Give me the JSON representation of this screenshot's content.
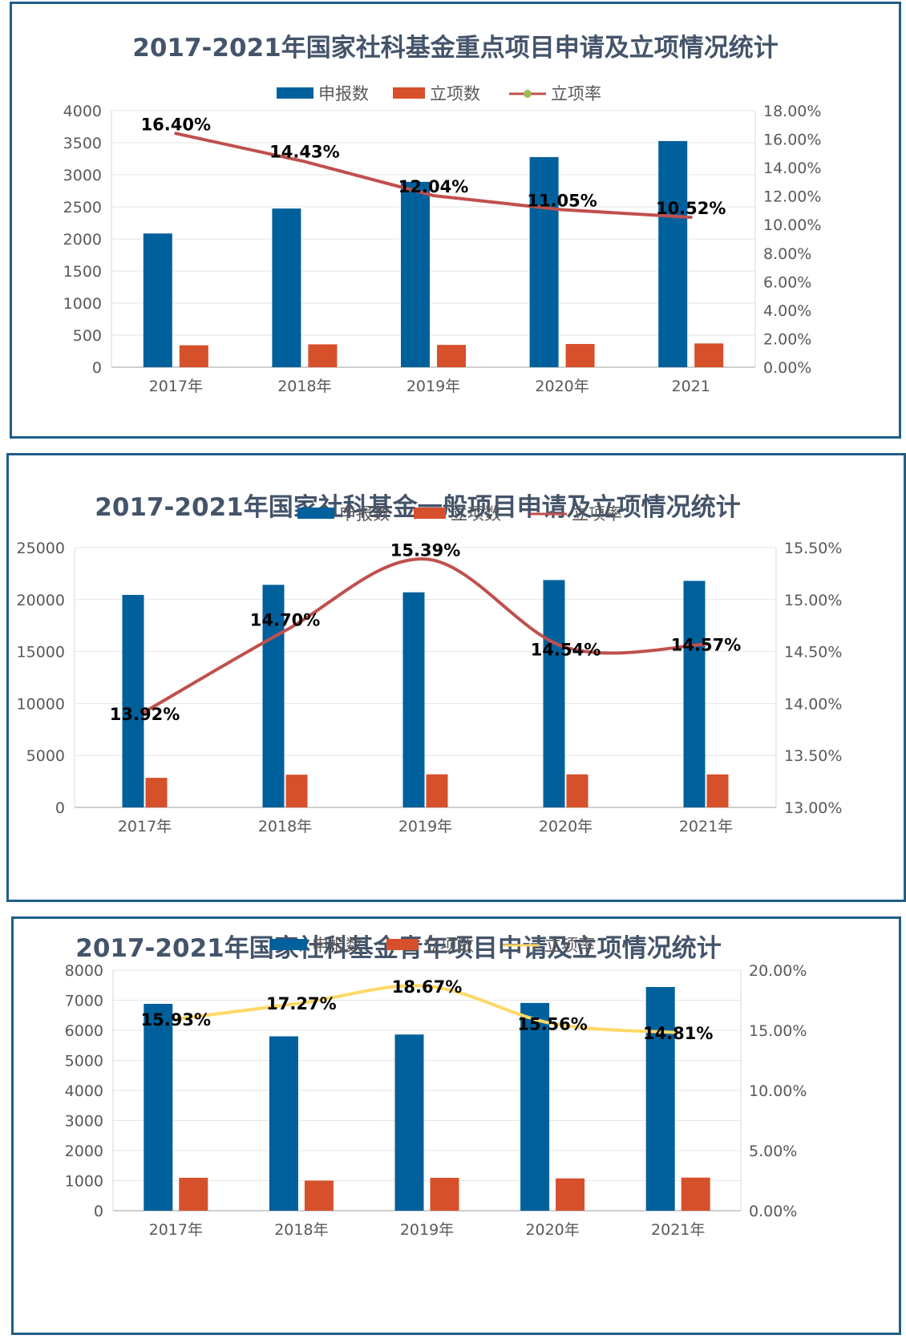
{
  "colors": {
    "declared": "#00609c",
    "approved": "#d6502b",
    "panel_border": "#1f5f86"
  },
  "chart_data": [
    {
      "type": "bar",
      "title": "2017-2021年国家社科基金重点项目申请及立项情况统计",
      "legend": [
        "申报数",
        "立项数",
        "立项率"
      ],
      "legend_marker": "dot",
      "categories": [
        "2017年",
        "2018年",
        "2019年",
        "2020年",
        "2021"
      ],
      "series": [
        {
          "name": "申报数",
          "values": [
            2085,
            2474,
            2890,
            3276,
            3526
          ]
        },
        {
          "name": "立项数",
          "values": [
            342,
            357,
            348,
            362,
            371
          ]
        }
      ],
      "line": {
        "name": "立项率",
        "values": [
          16.4,
          14.43,
          12.04,
          11.05,
          10.52
        ],
        "labels": [
          "16.40%",
          "14.43%",
          "12.04%",
          "11.05%",
          "10.52%"
        ],
        "color": "#c0504d",
        "smooth": false
      },
      "ylim": [
        0,
        4000
      ],
      "yticks": [
        "0",
        "500",
        "1000",
        "1500",
        "2000",
        "2500",
        "3000",
        "3500",
        "4000"
      ],
      "y2lim": [
        0,
        18
      ],
      "y2ticks": [
        "0.00%",
        "2.00%",
        "4.00%",
        "6.00%",
        "8.00%",
        "10.00%",
        "12.00%",
        "14.00%",
        "16.00%",
        "18.00%"
      ]
    },
    {
      "type": "bar",
      "title": "2017-2021年国家社科基金一般项目申请及立项情况统计",
      "legend": [
        "申报数",
        "立项数",
        "立项率"
      ],
      "legend_marker": "line",
      "categories": [
        "2017年",
        "2018年",
        "2019年",
        "2020年",
        "2021年"
      ],
      "series": [
        {
          "name": "申报数",
          "values": [
            20450,
            21420,
            20700,
            21880,
            21800
          ]
        },
        {
          "name": "立项数",
          "values": [
            2847,
            3148,
            3186,
            3181,
            3176
          ]
        }
      ],
      "line": {
        "name": "立项率",
        "values": [
          13.92,
          14.7,
          15.39,
          14.54,
          14.57
        ],
        "labels": [
          "13.92%",
          "14.70%",
          "15.39%",
          "14.54%",
          "14.57%"
        ],
        "color": "#c0504d",
        "smooth": true
      },
      "ylim": [
        0,
        25000
      ],
      "yticks": [
        "0",
        "5000",
        "10000",
        "15000",
        "20000",
        "25000"
      ],
      "y2lim": [
        13,
        15.5
      ],
      "y2ticks": [
        "13.00%",
        "13.50%",
        "14.00%",
        "14.50%",
        "15.00%",
        "15.50%"
      ]
    },
    {
      "type": "bar",
      "title": "2017-2021年国家社科基金青年项目申请及立项情况统计",
      "legend": [
        "申报数",
        "立项数",
        "立项率"
      ],
      "legend_marker": "line",
      "categories": [
        "2017年",
        "2018年",
        "2019年",
        "2020年",
        "2021年"
      ],
      "series": [
        {
          "name": "申报数",
          "values": [
            6880,
            5800,
            5860,
            6910,
            7440
          ]
        },
        {
          "name": "立项数",
          "values": [
            1096,
            1001,
            1094,
            1075,
            1102
          ]
        }
      ],
      "line": {
        "name": "立项率",
        "values": [
          15.93,
          17.27,
          18.67,
          15.56,
          14.81
        ],
        "labels": [
          "15.93%",
          "17.27%",
          "18.67%",
          "15.56%",
          "14.81%"
        ],
        "color": "#ffd966",
        "smooth": true
      },
      "ylim": [
        0,
        8000
      ],
      "yticks": [
        "0",
        "1000",
        "2000",
        "3000",
        "4000",
        "5000",
        "6000",
        "7000",
        "8000"
      ],
      "y2lim": [
        0,
        20
      ],
      "y2ticks": [
        "0.00%",
        "5.00%",
        "10.00%",
        "15.00%",
        "20.00%"
      ]
    }
  ]
}
